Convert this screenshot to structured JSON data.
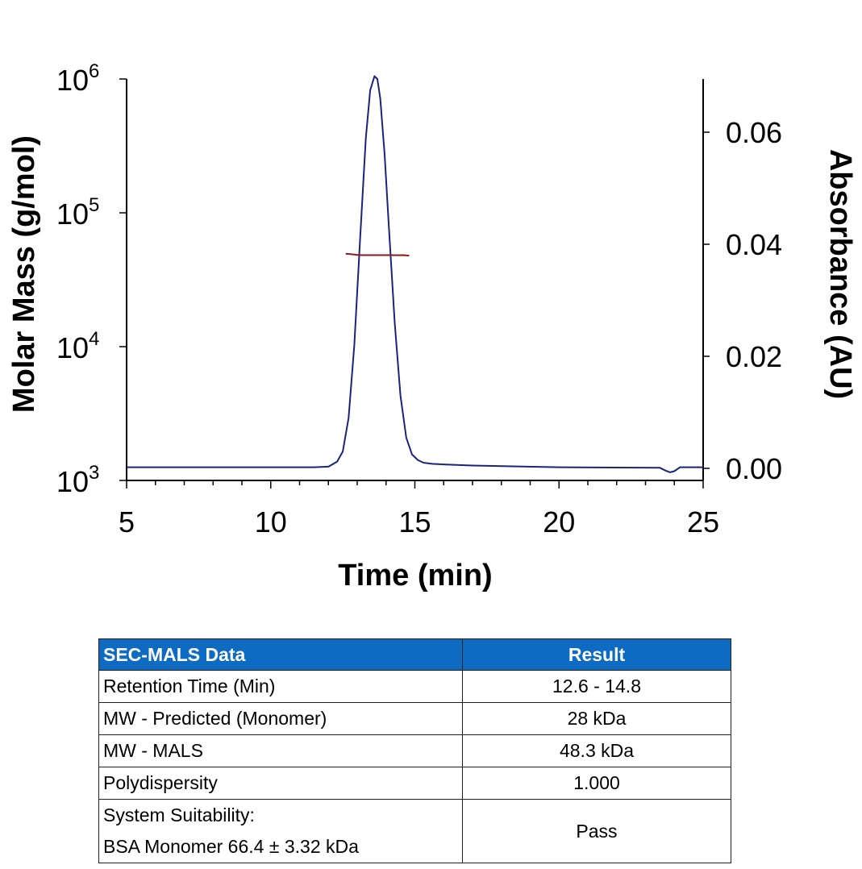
{
  "chart_data": {
    "type": "line",
    "xlabel": "Time (min)",
    "ylabel": "Molar Mass (g/mol)",
    "y2label": "Absorbance (AU)",
    "xlim": [
      5,
      25
    ],
    "x_ticks": [
      "5",
      "10",
      "15",
      "20",
      "25"
    ],
    "ylim": [
      1000,
      1000000
    ],
    "yscale": "log",
    "y_ticks": [
      {
        "base": "10",
        "exp": "3",
        "value": 1000
      },
      {
        "base": "10",
        "exp": "4",
        "value": 10000
      },
      {
        "base": "10",
        "exp": "5",
        "value": 100000
      },
      {
        "base": "10",
        "exp": "6",
        "value": 1000000
      }
    ],
    "y2lim": [
      0,
      0.07
    ],
    "y2_ticks": [
      "0.00",
      "0.02",
      "0.04",
      "0.06"
    ],
    "grid": false,
    "series": [
      {
        "axis": "right",
        "color": "#1a237e",
        "x": [
          5,
          10,
          11.5,
          12.0,
          12.3,
          12.5,
          12.7,
          12.9,
          13.1,
          13.3,
          13.45,
          13.6,
          13.7,
          13.8,
          13.95,
          14.1,
          14.3,
          14.5,
          14.7,
          14.9,
          15.1,
          15.3,
          15.6,
          16.0,
          17.0,
          20.0,
          23.5,
          23.7,
          23.85,
          24.0,
          24.2,
          24.5,
          25.0
        ],
        "values": [
          0.0002,
          0.0002,
          0.0002,
          0.0003,
          0.0012,
          0.003,
          0.009,
          0.022,
          0.041,
          0.059,
          0.0675,
          0.07,
          0.0695,
          0.066,
          0.056,
          0.043,
          0.026,
          0.013,
          0.0055,
          0.0025,
          0.0015,
          0.001,
          0.0008,
          0.0007,
          0.0005,
          0.0002,
          0.0001,
          -0.0004,
          -0.0007,
          -0.0005,
          0.0002,
          0.0002,
          0.0002
        ]
      },
      {
        "axis": "left",
        "color": "#8b1a1a",
        "x": [
          12.6,
          12.8,
          13.0,
          13.2,
          13.4,
          13.6,
          13.8,
          14.0,
          14.2,
          14.4,
          14.6,
          14.8
        ],
        "values": [
          49500,
          49000,
          48500,
          48300,
          48300,
          48300,
          48300,
          48300,
          48300,
          48200,
          48300,
          47900
        ]
      }
    ]
  },
  "table": {
    "headers": [
      "SEC-MALS Data",
      "Result"
    ],
    "rows": [
      {
        "label": "Retention Time (Min)",
        "value": "12.6 - 14.8"
      },
      {
        "label": "MW - Predicted (Monomer)",
        "value": "28 kDa"
      },
      {
        "label": "MW - MALS",
        "value": "48.3 kDa"
      },
      {
        "label": "Polydispersity",
        "value": "1.000"
      }
    ],
    "suitability": {
      "line1": "System Suitability:",
      "line2": "BSA Monomer 66.4 ± 3.32 kDa",
      "value": "Pass"
    }
  }
}
